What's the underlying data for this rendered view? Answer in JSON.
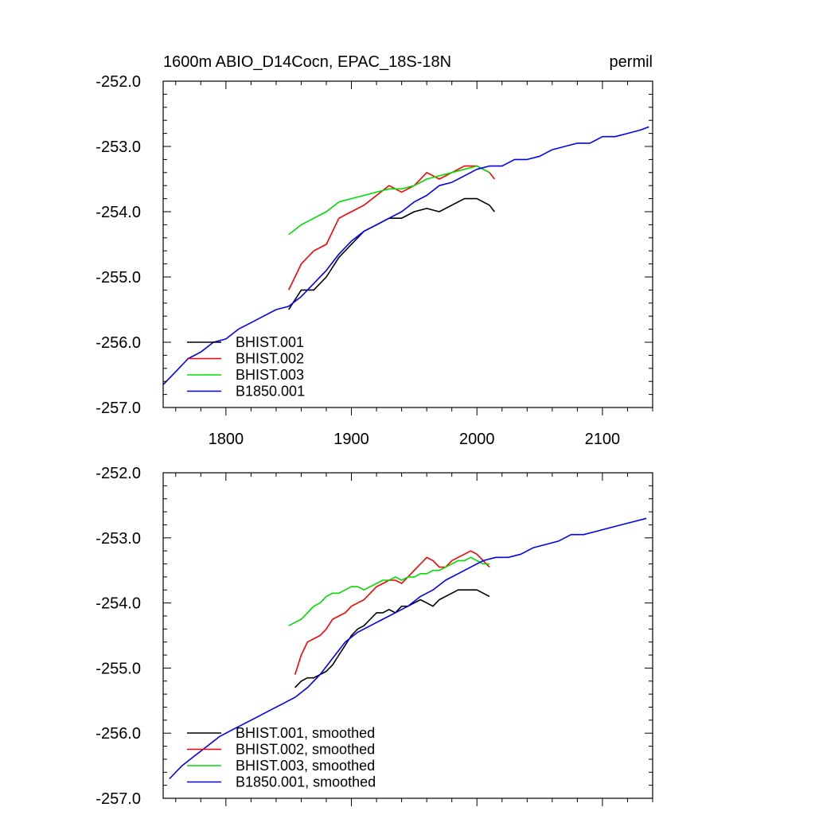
{
  "chart_data": [
    {
      "type": "line",
      "title_left": "1600m ABIO_D14Cocn, EPAC_18S-18N",
      "title_right": "permil",
      "xlim": [
        1750,
        2140
      ],
      "ylim": [
        -257.0,
        -252.0
      ],
      "yticks": [
        "-252.0",
        "-253.0",
        "-254.0",
        "-255.0",
        "-256.0",
        "-257.0"
      ],
      "ytick_values": [
        -252,
        -253,
        -254,
        -255,
        -256,
        -257
      ],
      "xticks": [
        "1800",
        "1900",
        "2000",
        "2100"
      ],
      "xtick_values": [
        1800,
        1900,
        2000,
        2100
      ],
      "show_xtick_labels": true,
      "legend_position": "bottom-left",
      "series": [
        {
          "name": "BHIST.001",
          "color": "#000000",
          "x": [
            1850,
            1860,
            1870,
            1880,
            1890,
            1900,
            1910,
            1920,
            1930,
            1940,
            1950,
            1960,
            1970,
            1980,
            1990,
            2000,
            2010,
            2014
          ],
          "values": [
            -255.5,
            -255.2,
            -255.2,
            -255.0,
            -254.7,
            -254.5,
            -254.3,
            -254.2,
            -254.1,
            -254.1,
            -254.0,
            -253.95,
            -254.0,
            -253.9,
            -253.8,
            -253.8,
            -253.9,
            -254.0
          ]
        },
        {
          "name": "BHIST.002",
          "color": "#ff0000",
          "x": [
            1850,
            1860,
            1870,
            1880,
            1890,
            1900,
            1910,
            1920,
            1930,
            1940,
            1950,
            1960,
            1970,
            1980,
            1990,
            2000,
            2010,
            2014
          ],
          "values": [
            -255.2,
            -254.8,
            -254.6,
            -254.5,
            -254.1,
            -254.0,
            -253.9,
            -253.75,
            -253.6,
            -253.7,
            -253.6,
            -253.4,
            -253.5,
            -253.4,
            -253.3,
            -253.3,
            -253.4,
            -253.5
          ]
        },
        {
          "name": "BHIST.003",
          "color": "#00dd00",
          "x": [
            1850,
            1860,
            1870,
            1880,
            1890,
            1900,
            1910,
            1920,
            1930,
            1940,
            1950,
            1960,
            1970,
            1980,
            1990,
            2000,
            2010
          ],
          "values": [
            -254.35,
            -254.2,
            -254.1,
            -254.0,
            -253.85,
            -253.8,
            -253.75,
            -253.7,
            -253.65,
            -253.65,
            -253.6,
            -253.5,
            -253.45,
            -253.4,
            -253.35,
            -253.3,
            -253.4
          ]
        },
        {
          "name": "B1850.001",
          "color": "#0000ff",
          "x": [
            1750,
            1760,
            1770,
            1780,
            1790,
            1800,
            1810,
            1820,
            1830,
            1840,
            1850,
            1860,
            1870,
            1880,
            1890,
            1900,
            1910,
            1920,
            1930,
            1940,
            1950,
            1960,
            1970,
            1980,
            1990,
            2000,
            2010,
            2020,
            2030,
            2040,
            2050,
            2060,
            2070,
            2080,
            2090,
            2100,
            2110,
            2120,
            2130,
            2137
          ],
          "values": [
            -256.65,
            -256.45,
            -256.25,
            -256.15,
            -256.0,
            -255.95,
            -255.8,
            -255.7,
            -255.6,
            -255.5,
            -255.45,
            -255.3,
            -255.1,
            -254.9,
            -254.65,
            -254.45,
            -254.3,
            -254.2,
            -254.1,
            -254.0,
            -253.85,
            -253.75,
            -253.6,
            -253.55,
            -253.45,
            -253.35,
            -253.3,
            -253.3,
            -253.2,
            -253.2,
            -253.15,
            -253.05,
            -253.0,
            -252.95,
            -252.95,
            -252.85,
            -252.85,
            -252.8,
            -252.75,
            -252.7
          ]
        }
      ]
    },
    {
      "type": "line",
      "title_left": "",
      "title_right": "",
      "xlim": [
        1750,
        2140
      ],
      "ylim": [
        -257.0,
        -252.0
      ],
      "yticks": [
        "-252.0",
        "-253.0",
        "-254.0",
        "-255.0",
        "-256.0",
        "-257.0"
      ],
      "ytick_values": [
        -252,
        -253,
        -254,
        -255,
        -256,
        -257
      ],
      "xticks": [],
      "xtick_values": [
        1800,
        1900,
        2000,
        2100
      ],
      "show_xtick_labels": false,
      "legend_position": "bottom-left",
      "series": [
        {
          "name": "BHIST.001, smoothed",
          "color": "#000000",
          "x": [
            1855,
            1860,
            1865,
            1870,
            1875,
            1880,
            1885,
            1890,
            1895,
            1900,
            1905,
            1910,
            1915,
            1920,
            1925,
            1930,
            1935,
            1940,
            1945,
            1950,
            1955,
            1960,
            1965,
            1970,
            1975,
            1980,
            1985,
            1990,
            1995,
            2000,
            2005,
            2010
          ],
          "values": [
            -255.3,
            -255.2,
            -255.15,
            -255.15,
            -255.1,
            -255.05,
            -254.95,
            -254.8,
            -254.65,
            -254.5,
            -254.4,
            -254.35,
            -254.25,
            -254.15,
            -254.15,
            -254.1,
            -254.15,
            -254.05,
            -254.05,
            -254.0,
            -253.95,
            -254.0,
            -254.05,
            -253.95,
            -253.9,
            -253.85,
            -253.8,
            -253.8,
            -253.8,
            -253.8,
            -253.85,
            -253.9
          ]
        },
        {
          "name": "BHIST.002, smoothed",
          "color": "#ff0000",
          "x": [
            1855,
            1860,
            1865,
            1870,
            1875,
            1880,
            1885,
            1890,
            1895,
            1900,
            1905,
            1910,
            1915,
            1920,
            1925,
            1930,
            1935,
            1940,
            1945,
            1950,
            1955,
            1960,
            1965,
            1970,
            1975,
            1980,
            1985,
            1990,
            1995,
            2000,
            2005,
            2010
          ],
          "values": [
            -255.1,
            -254.8,
            -254.6,
            -254.55,
            -254.5,
            -254.4,
            -254.25,
            -254.2,
            -254.15,
            -254.05,
            -254.0,
            -253.95,
            -253.85,
            -253.75,
            -253.7,
            -253.65,
            -253.65,
            -253.7,
            -253.6,
            -253.5,
            -253.4,
            -253.3,
            -253.35,
            -253.45,
            -253.45,
            -253.35,
            -253.3,
            -253.25,
            -253.2,
            -253.25,
            -253.35,
            -253.45
          ]
        },
        {
          "name": "BHIST.003, smoothed",
          "color": "#00dd00",
          "x": [
            1850,
            1855,
            1860,
            1865,
            1870,
            1875,
            1880,
            1885,
            1890,
            1895,
            1900,
            1905,
            1910,
            1915,
            1920,
            1925,
            1930,
            1935,
            1940,
            1945,
            1950,
            1955,
            1960,
            1965,
            1970,
            1975,
            1980,
            1985,
            1990,
            1995,
            2000,
            2005,
            2010
          ],
          "values": [
            -254.35,
            -254.3,
            -254.25,
            -254.15,
            -254.05,
            -254.0,
            -253.9,
            -253.85,
            -253.85,
            -253.8,
            -253.75,
            -253.75,
            -253.8,
            -253.75,
            -253.7,
            -253.65,
            -253.65,
            -253.6,
            -253.65,
            -253.6,
            -253.6,
            -253.55,
            -253.55,
            -253.5,
            -253.5,
            -253.45,
            -253.4,
            -253.35,
            -253.35,
            -253.3,
            -253.35,
            -253.4,
            -253.4
          ]
        },
        {
          "name": "B1850.001, smoothed",
          "color": "#0000ff",
          "x": [
            1755,
            1765,
            1775,
            1785,
            1795,
            1805,
            1815,
            1825,
            1835,
            1845,
            1855,
            1865,
            1875,
            1885,
            1895,
            1905,
            1915,
            1925,
            1935,
            1945,
            1955,
            1965,
            1975,
            1985,
            1995,
            2005,
            2015,
            2025,
            2035,
            2045,
            2055,
            2065,
            2075,
            2085,
            2095,
            2105,
            2115,
            2125,
            2135
          ],
          "values": [
            -256.7,
            -256.5,
            -256.35,
            -256.2,
            -256.05,
            -255.95,
            -255.85,
            -255.75,
            -255.65,
            -255.55,
            -255.45,
            -255.3,
            -255.1,
            -254.85,
            -254.6,
            -254.45,
            -254.35,
            -254.25,
            -254.15,
            -254.05,
            -253.9,
            -253.8,
            -253.65,
            -253.55,
            -253.45,
            -253.35,
            -253.3,
            -253.3,
            -253.25,
            -253.15,
            -253.1,
            -253.05,
            -252.95,
            -252.95,
            -252.9,
            -252.85,
            -252.8,
            -252.75,
            -252.7
          ]
        }
      ]
    }
  ]
}
